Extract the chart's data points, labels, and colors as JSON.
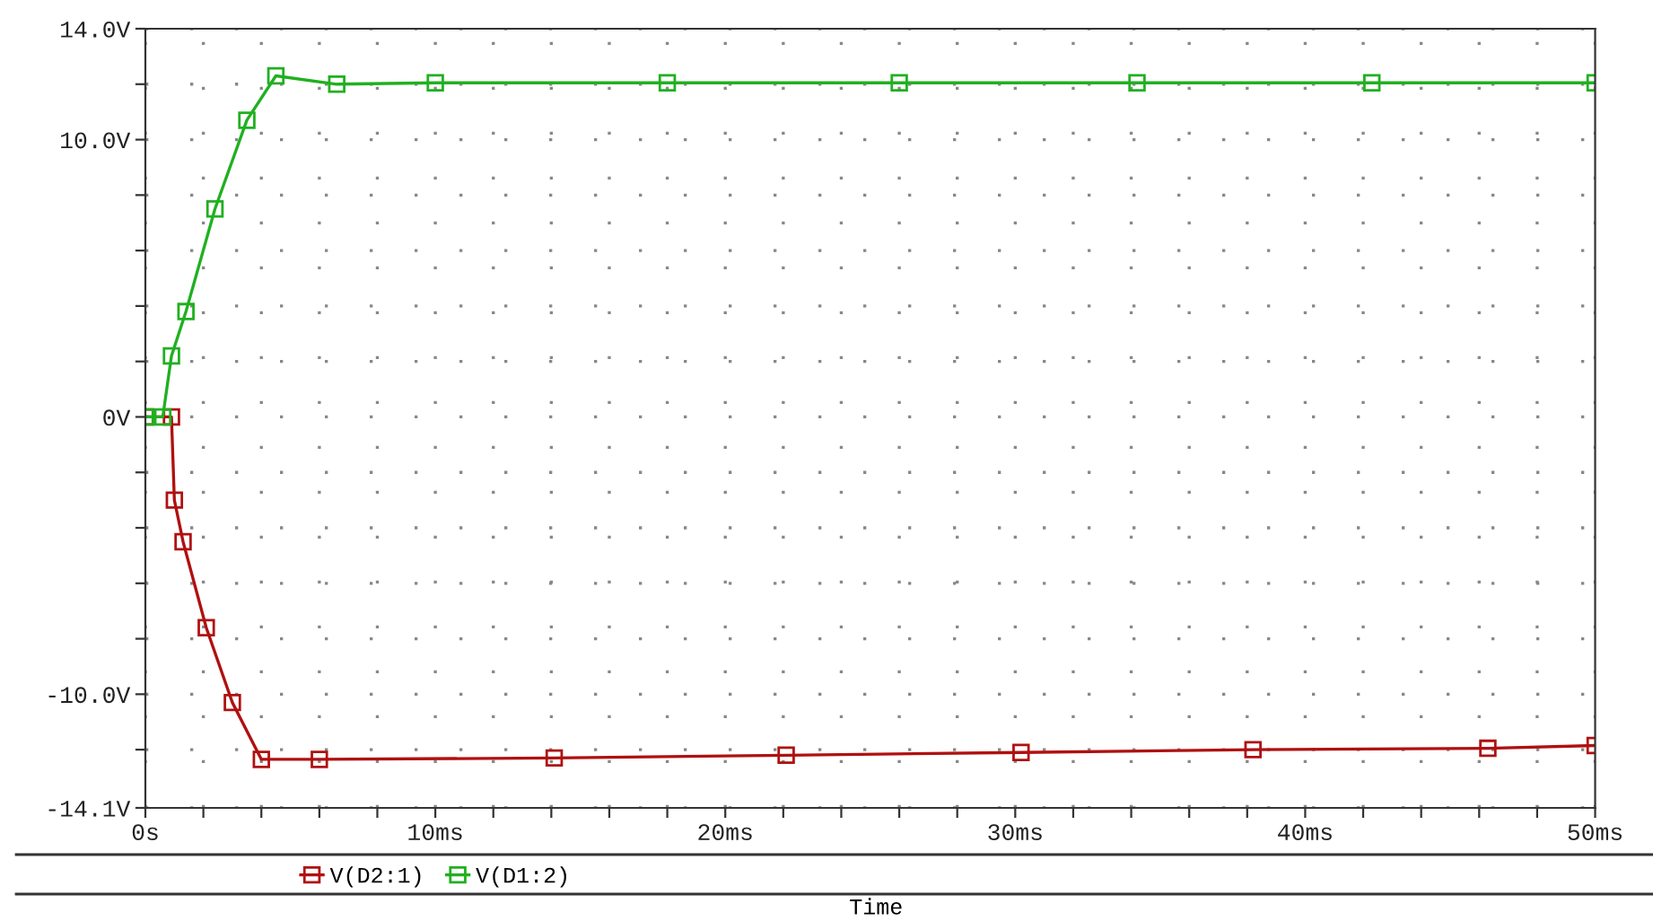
{
  "chart_data": {
    "type": "line",
    "xlabel": "Time",
    "xlim": [
      0,
      50
    ],
    "xticks": [
      {
        "value": 0,
        "label": "0s"
      },
      {
        "value": 2,
        "label": null
      },
      {
        "value": 4,
        "label": null
      },
      {
        "value": 6,
        "label": null
      },
      {
        "value": 8,
        "label": null
      },
      {
        "value": 10,
        "label": "10ms"
      },
      {
        "value": 12,
        "label": null
      },
      {
        "value": 14,
        "label": null
      },
      {
        "value": 16,
        "label": null
      },
      {
        "value": 18,
        "label": null
      },
      {
        "value": 20,
        "label": "20ms"
      },
      {
        "value": 22,
        "label": null
      },
      {
        "value": 24,
        "label": null
      },
      {
        "value": 26,
        "label": null
      },
      {
        "value": 28,
        "label": null
      },
      {
        "value": 30,
        "label": "30ms"
      },
      {
        "value": 32,
        "label": null
      },
      {
        "value": 34,
        "label": null
      },
      {
        "value": 36,
        "label": null
      },
      {
        "value": 38,
        "label": null
      },
      {
        "value": 40,
        "label": "40ms"
      },
      {
        "value": 42,
        "label": null
      },
      {
        "value": 44,
        "label": null
      },
      {
        "value": 46,
        "label": null
      },
      {
        "value": 48,
        "label": null
      },
      {
        "value": 50,
        "label": "50ms"
      }
    ],
    "ylim": [
      -14.1,
      14
    ],
    "yticks": [
      {
        "value": -14.1,
        "label": "-14.1V"
      },
      {
        "value": -12,
        "label": null
      },
      {
        "value": -10,
        "label": "-10.0V"
      },
      {
        "value": -8,
        "label": null
      },
      {
        "value": -6,
        "label": null
      },
      {
        "value": -4,
        "label": null
      },
      {
        "value": -2,
        "label": null
      },
      {
        "value": 0,
        "label": "0V"
      },
      {
        "value": 2,
        "label": null
      },
      {
        "value": 4,
        "label": null
      },
      {
        "value": 6,
        "label": null
      },
      {
        "value": 8,
        "label": null
      },
      {
        "value": 10,
        "label": "10.0V"
      },
      {
        "value": 12,
        "label": null
      },
      {
        "value": 14,
        "label": "14.0V"
      }
    ],
    "grid": true,
    "legend": "bottom",
    "marker": "square",
    "line_style": "solid",
    "series": [
      {
        "name": "V(D2:1)",
        "color": "#b01010",
        "x": [
          0,
          0.9,
          1.0,
          1.3,
          2.1,
          3.0,
          4.0,
          6.0,
          14.1,
          22.1,
          30.2,
          38.2,
          46.3,
          50
        ],
        "values": [
          0,
          0,
          -3,
          -4.5,
          -7.6,
          -10.3,
          -12.35,
          -12.35,
          -12.3,
          -12.2,
          -12.1,
          -12.0,
          -11.95,
          -11.85
        ]
      },
      {
        "name": "V(D1:2)",
        "color": "#20b020",
        "x": [
          0,
          0.6,
          0.9,
          1.4,
          2.4,
          3.5,
          4.5,
          6.6,
          10,
          18,
          26,
          34.2,
          42.3,
          50
        ],
        "values": [
          0,
          0,
          2.2,
          3.8,
          7.5,
          10.7,
          12.3,
          12.0,
          12.05,
          12.05,
          12.05,
          12.05,
          12.05,
          12.05
        ]
      }
    ]
  }
}
